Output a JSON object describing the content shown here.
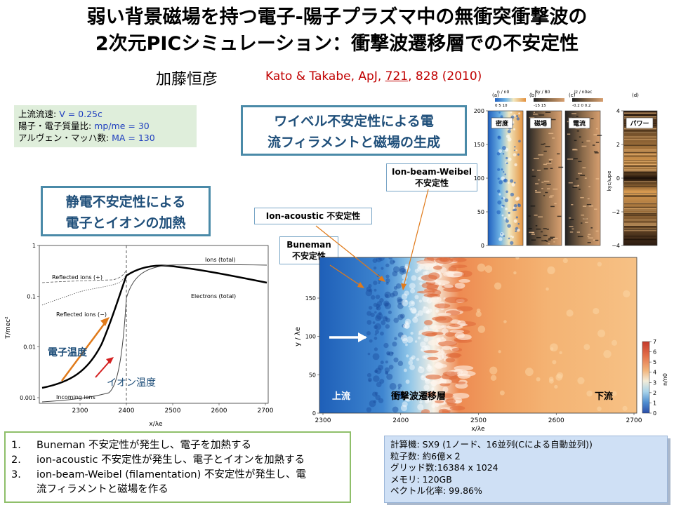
{
  "title": {
    "line1": "弱い背景磁場を持つ電子-陽子プラズマ中の無衝突衝撃波の",
    "line2": "2次元PICシミュレーション：衝撃波遷移層での不安定性"
  },
  "author": "加藤恒彦",
  "reference": {
    "prefix": "Kato & Takabe, ApJ, ",
    "volume": "721",
    "suffix": ", 828 (2010)"
  },
  "params": {
    "l1_label": "上流流速:",
    "l1_value": "V = 0.25c",
    "l2_label": "陽子・電子質量比:",
    "l2_value": "mp/me = 30",
    "l3_label": "アルヴェン・マッハ数:",
    "l3_value": "MA = 130"
  },
  "callouts": {
    "weibel": "ワイベル不安定性による電流フィラメントと磁場の生成",
    "weibel_l1": "ワイベル不安定性による電",
    "weibel_l2": "流フィラメントと磁場の生成",
    "electro_l1": "静電不安定性による",
    "electro_l2": "電子とイオンの加熱"
  },
  "labels": {
    "ibw_l1": "Ion-beam-Weibel",
    "ibw_l2": "不安定性",
    "ionac": "Ion-acoustic 不安定性",
    "bun_l1": "Buneman",
    "bun_l2": "不安定性"
  },
  "temperature_chart": {
    "ylabel": "T/mec²",
    "xlabel": "x/λe",
    "yticks": [
      "1",
      "0.1",
      "0.01",
      "0.001"
    ],
    "xticks": [
      "2300",
      "2400",
      "2500",
      "2600",
      "2700"
    ],
    "annotations": {
      "ions_total": "Ions (total)",
      "electrons_total": "Electrons (total)",
      "reflected_plus": "Reflected ions (+)",
      "reflected_minus": "Reflected ions (−)",
      "incoming": "Incoming ions",
      "electron_temp": "電子温度",
      "ion_temp": "イオン温度"
    }
  },
  "density_map": {
    "ylabel": "y / λe",
    "xlabel": "x/λe",
    "yticks": [
      "150",
      "100",
      "50",
      "0"
    ],
    "xticks": [
      "2300",
      "2400",
      "2500",
      "2600",
      "2700"
    ],
    "cbar_ticks": [
      "7",
      "6",
      "5",
      "4",
      "3",
      "2",
      "1",
      "0"
    ],
    "cbar_label": "n/n0",
    "upstream": "上流",
    "transition": "衝撃波遷移層",
    "downstream": "下流"
  },
  "panels": {
    "a": "(a)",
    "b": "(b)",
    "c": "(c)",
    "d": "(d)",
    "a_tag": "密度",
    "b_tag": "磁場",
    "c_tag": "電流",
    "d_tag": "パワー",
    "a_head": "n / n0",
    "b_head": "By / B0",
    "c_head": "Jz / n0ec",
    "a_scale": "0    5  10",
    "b_scale": "-15      15",
    "c_scale": "-0.2  0  0.2",
    "yticks": [
      "200",
      "150",
      "100",
      "50",
      "0"
    ],
    "d_yticks": [
      "4",
      "2",
      "0",
      "−2",
      "−4"
    ],
    "d_ylabel": "kyc/ωpe"
  },
  "list": [
    {
      "n": "1.",
      "text": "Buneman 不安定性が発生し、電子を加熱する"
    },
    {
      "n": "2.",
      "text": "ion-acoustic 不安定性が発生し、電子とイオンを加熱する"
    },
    {
      "n": "3.",
      "text": "ion-beam-Weibel (filamentation) 不安定性が発生し、電"
    },
    {
      "n": "",
      "text": "流フィラメントと磁場を作る"
    }
  ],
  "spec": {
    "l1": "計算機: SX9 (1ノード、16並列(Cによる自動並列))",
    "l2": "粒子数: 約6億×２",
    "l3": "グリッド数:16384 x 1024",
    "l4": "メモリ: 120GB",
    "l5": "ベクトル化率: 99.86%"
  },
  "colors": {
    "accent": "#4a8aa8",
    "reference": "#c00000",
    "param_value": "#1f3fbf",
    "arrow": "#e07a1a"
  }
}
